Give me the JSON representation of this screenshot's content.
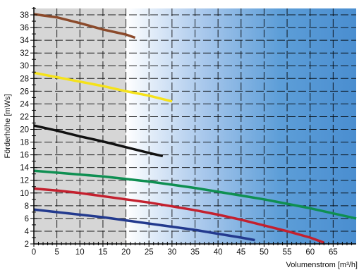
{
  "chart_data": {
    "type": "line",
    "title": "",
    "xlabel": "Volumenstrom [m³/h]",
    "ylabel": "Förderhöhe [mWs]",
    "xlim": [
      0,
      70
    ],
    "ylim": [
      2,
      39
    ],
    "x_ticks": [
      0,
      5,
      10,
      15,
      20,
      25,
      30,
      35,
      40,
      45,
      50,
      55,
      60,
      65
    ],
    "x_tick_labels": [
      "0",
      "5",
      "10",
      "15",
      "20",
      "25",
      "30",
      "35",
      "40",
      "45",
      "50",
      "55",
      "60",
      "65"
    ],
    "y_ticks": [
      2,
      4,
      6,
      8,
      10,
      12,
      14,
      16,
      18,
      20,
      22,
      24,
      26,
      28,
      30,
      32,
      34,
      36,
      38
    ],
    "y_tick_labels": [
      "2",
      "4",
      "6",
      "8",
      "10",
      "12",
      "14",
      "16",
      "18",
      "20",
      "22",
      "24",
      "26",
      "28",
      "30",
      "32",
      "34",
      "36",
      "38"
    ],
    "grid": true,
    "legend": "none",
    "background": {
      "left_color": "#d6d6d6",
      "gradient_start_x": 20,
      "gradient_colors": [
        "#ffffff",
        "#a9c8ec",
        "#5d9ed8",
        "#4a8ed0"
      ]
    },
    "series": [
      {
        "color": "#8b4a2b",
        "x": [
          0,
          5,
          10,
          15,
          20,
          22
        ],
        "y": [
          38.1,
          37.6,
          36.7,
          35.7,
          34.9,
          34.4
        ]
      },
      {
        "color": "#f5e21a",
        "x": [
          0,
          5,
          10,
          15,
          20,
          25,
          30
        ],
        "y": [
          28.9,
          28.2,
          27.5,
          26.8,
          26.0,
          25.3,
          24.4
        ]
      },
      {
        "color": "#111111",
        "x": [
          0,
          5,
          10,
          15,
          20,
          25,
          28
        ],
        "y": [
          20.6,
          19.8,
          18.9,
          18.1,
          17.2,
          16.3,
          15.8
        ]
      },
      {
        "color": "#0f8f52",
        "x": [
          0,
          5,
          10,
          15,
          20,
          25,
          30,
          35,
          40,
          45,
          50,
          55,
          60,
          65,
          70
        ],
        "y": [
          13.5,
          13.2,
          12.9,
          12.6,
          12.2,
          11.8,
          11.3,
          10.8,
          10.2,
          9.6,
          9.0,
          8.3,
          7.6,
          6.8,
          6.0
        ]
      },
      {
        "color": "#c3202e",
        "x": [
          0,
          5,
          10,
          15,
          20,
          25,
          30,
          35,
          40,
          45,
          50,
          55,
          60,
          63
        ],
        "y": [
          10.7,
          10.4,
          10.0,
          9.5,
          9.0,
          8.5,
          7.9,
          7.3,
          6.6,
          5.8,
          4.9,
          4.0,
          3.0,
          2.2
        ]
      },
      {
        "color": "#233a8e",
        "x": [
          0,
          5,
          10,
          15,
          20,
          25,
          30,
          35,
          40,
          45,
          48
        ],
        "y": [
          7.4,
          7.0,
          6.6,
          6.2,
          5.7,
          5.2,
          4.7,
          4.2,
          3.6,
          3.0,
          2.6
        ]
      }
    ]
  }
}
